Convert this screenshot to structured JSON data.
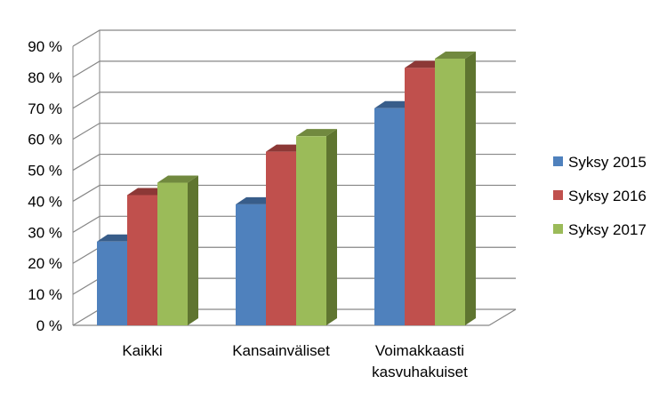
{
  "chart_data": {
    "type": "bar",
    "title": "",
    "xlabel": "",
    "ylabel": "",
    "ylim": [
      0,
      90
    ],
    "y_tick_step": 10,
    "y_tick_labels": [
      "0 %",
      "10 %",
      "20 %",
      "30 %",
      "40 %",
      "50 %",
      "60 %",
      "70 %",
      "80 %",
      "90 %"
    ],
    "categories": [
      [
        "Kaikki"
      ],
      [
        "Kansainväliset"
      ],
      [
        "Voimakkaasti",
        "kasvuhakuiset"
      ]
    ],
    "series": [
      {
        "name": "Syksy 2015",
        "values": [
          27,
          39,
          70
        ]
      },
      {
        "name": "Syksy 2016",
        "values": [
          42,
          56,
          83
        ]
      },
      {
        "name": "Syksy 2017",
        "values": [
          46,
          61,
          86
        ]
      }
    ],
    "grid": true,
    "three_d": true,
    "legend_position": "right",
    "colors": {
      "series_front": [
        "#4f81bd",
        "#c0504d",
        "#9bbb59"
      ],
      "series_top": [
        "#385d8a",
        "#8c3836",
        "#71893f"
      ],
      "series_side": [
        "#2c4d75",
        "#772c2a",
        "#5f7530"
      ],
      "grid": "#868686",
      "axis": "#868686"
    }
  }
}
